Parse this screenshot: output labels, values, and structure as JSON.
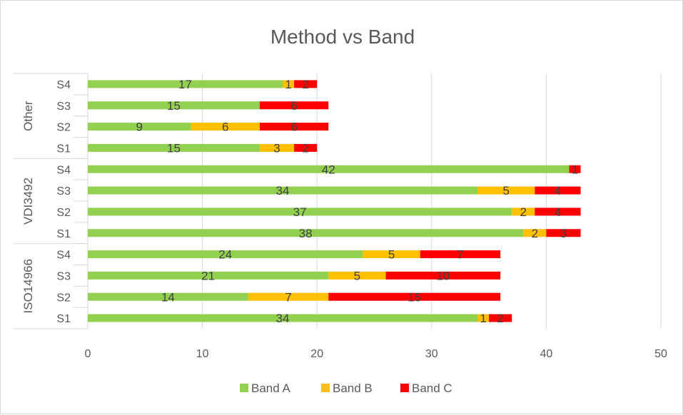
{
  "chart_data": {
    "type": "bar",
    "orientation": "horizontal",
    "stacked": true,
    "title": "Method vs Band",
    "groups": [
      {
        "name": "ISO14966",
        "categories": [
          "S1",
          "S2",
          "S3",
          "S4"
        ]
      },
      {
        "name": "VDI3492",
        "categories": [
          "S1",
          "S2",
          "S3",
          "S4"
        ]
      },
      {
        "name": "Other",
        "categories": [
          "S1",
          "S2",
          "S3",
          "S4"
        ]
      }
    ],
    "series": [
      {
        "name": "Band A",
        "color": "#92d050",
        "values": [
          34,
          14,
          21,
          24,
          38,
          37,
          34,
          42,
          15,
          9,
          15,
          17
        ]
      },
      {
        "name": "Band B",
        "color": "#ffc000",
        "values": [
          1,
          7,
          5,
          5,
          2,
          2,
          5,
          0,
          3,
          6,
          0,
          1
        ]
      },
      {
        "name": "Band C",
        "color": "#ff0000",
        "values": [
          2,
          15,
          10,
          7,
          3,
          4,
          4,
          1,
          2,
          6,
          6,
          2
        ]
      }
    ],
    "xlim": [
      0,
      50
    ],
    "xticks": [
      0,
      10,
      20,
      30,
      40,
      50
    ],
    "grid": true,
    "legend_position": "bottom"
  }
}
